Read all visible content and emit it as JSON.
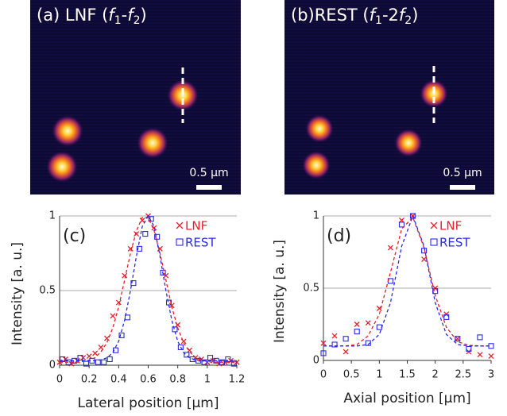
{
  "images": [
    {
      "label_parts": [
        "(a) LNF (",
        "f",
        "1",
        "-",
        "f",
        "2",
        ")"
      ],
      "scale_bar": "0.5 μm"
    },
    {
      "label_parts": [
        "(b)REST (",
        "f",
        "1",
        "-2",
        "f",
        "2",
        ")"
      ],
      "scale_bar": "0.5 μm"
    }
  ],
  "chart_data": [
    {
      "type": "scatter",
      "panel_label": "(c)",
      "xlabel": "Lateral position [μm]",
      "ylabel": "Intensity [a. u.]",
      "xlim": [
        0,
        1.2
      ],
      "ylim": [
        0,
        1
      ],
      "xticks": [
        0,
        0.2,
        0.4,
        0.6,
        0.8,
        1,
        1.2
      ],
      "yticks": [
        0,
        0.5,
        1
      ],
      "grid": true,
      "legend": "upper right",
      "series": [
        {
          "name": "LNF",
          "color": "#e8202a",
          "marker": "x",
          "x": [
            0,
            0.04,
            0.08,
            0.12,
            0.16,
            0.2,
            0.24,
            0.28,
            0.32,
            0.36,
            0.4,
            0.44,
            0.48,
            0.52,
            0.56,
            0.6,
            0.64,
            0.68,
            0.72,
            0.76,
            0.8,
            0.84,
            0.88,
            0.92,
            0.96,
            1,
            1.04,
            1.08,
            1.12,
            1.16,
            1.2
          ],
          "values": [
            0.02,
            0.04,
            0.01,
            0.03,
            0.05,
            0.06,
            0.08,
            0.12,
            0.18,
            0.33,
            0.42,
            0.6,
            0.78,
            0.88,
            0.97,
            1,
            0.92,
            0.78,
            0.6,
            0.4,
            0.27,
            0.16,
            0.1,
            0.05,
            0.04,
            0.02,
            0.03,
            0.01,
            0.02,
            0.03,
            0.02
          ]
        },
        {
          "name": "REST",
          "color": "#2a2ae8",
          "marker": "square",
          "x": [
            0.02,
            0.06,
            0.1,
            0.14,
            0.18,
            0.22,
            0.26,
            0.3,
            0.34,
            0.38,
            0.42,
            0.46,
            0.5,
            0.54,
            0.58,
            0.62,
            0.66,
            0.7,
            0.74,
            0.78,
            0.82,
            0.86,
            0.9,
            0.94,
            0.98,
            1.02,
            1.06,
            1.1,
            1.14,
            1.18
          ],
          "values": [
            0.04,
            0.02,
            0.03,
            0.05,
            0.01,
            0.03,
            0.02,
            0.02,
            0.04,
            0.1,
            0.2,
            0.32,
            0.55,
            0.78,
            0.88,
            0.98,
            0.86,
            0.62,
            0.42,
            0.24,
            0.12,
            0.07,
            0.04,
            0.03,
            0.02,
            0.05,
            0.03,
            0.02,
            0.04,
            0.01
          ]
        },
        {
          "color": "#e8202a",
          "marker": "dashed-line",
          "x": [
            0,
            0.04,
            0.08,
            0.12,
            0.16,
            0.2,
            0.24,
            0.28,
            0.32,
            0.36,
            0.4,
            0.44,
            0.48,
            0.52,
            0.56,
            0.6,
            0.64,
            0.68,
            0.72,
            0.76,
            0.8,
            0.84,
            0.88,
            0.92,
            0.96,
            1,
            1.04,
            1.08,
            1.12,
            1.16,
            1.2
          ],
          "values": [
            0.02,
            0.02,
            0.02,
            0.02,
            0.025,
            0.034,
            0.05,
            0.09,
            0.15,
            0.25,
            0.39,
            0.57,
            0.75,
            0.9,
            0.99,
            0.99,
            0.9,
            0.75,
            0.57,
            0.39,
            0.25,
            0.15,
            0.09,
            0.05,
            0.034,
            0.025,
            0.02,
            0.02,
            0.02,
            0.02,
            0.02
          ]
        },
        {
          "color": "#2a2ae8",
          "marker": "dashed-line",
          "x": [
            0,
            0.04,
            0.08,
            0.12,
            0.16,
            0.2,
            0.24,
            0.28,
            0.32,
            0.36,
            0.4,
            0.44,
            0.48,
            0.52,
            0.56,
            0.6,
            0.64,
            0.68,
            0.72,
            0.76,
            0.8,
            0.84,
            0.88,
            0.92,
            0.96,
            1,
            1.04,
            1.08,
            1.12,
            1.16,
            1.2
          ],
          "values": [
            0.03,
            0.03,
            0.03,
            0.03,
            0.03,
            0.03,
            0.03,
            0.036,
            0.049,
            0.084,
            0.16,
            0.3,
            0.5,
            0.73,
            0.93,
            1,
            0.93,
            0.73,
            0.5,
            0.3,
            0.16,
            0.084,
            0.049,
            0.036,
            0.03,
            0.03,
            0.03,
            0.03,
            0.03,
            0.03,
            0.03
          ]
        }
      ]
    },
    {
      "type": "scatter",
      "panel_label": "(d)",
      "xlabel": "Axial position [μm]",
      "ylabel": "Intensity [a. u.]",
      "xlim": [
        0,
        3
      ],
      "ylim": [
        0,
        1
      ],
      "xticks": [
        0,
        0.5,
        1,
        1.5,
        2,
        2.5,
        3
      ],
      "yticks": [
        0,
        0.5,
        1
      ],
      "grid": true,
      "legend": "upper right",
      "series": [
        {
          "name": "LNF",
          "color": "#e8202a",
          "marker": "x",
          "x": [
            0,
            0.2,
            0.4,
            0.6,
            0.8,
            1,
            1.2,
            1.4,
            1.6,
            1.8,
            2,
            2.2,
            2.4,
            2.6,
            2.8,
            3
          ],
          "values": [
            0.12,
            0.17,
            0.06,
            0.25,
            0.26,
            0.36,
            0.78,
            0.97,
            1,
            0.7,
            0.5,
            0.32,
            0.15,
            0.06,
            0.04,
            0.03
          ]
        },
        {
          "name": "REST",
          "color": "#2a2ae8",
          "marker": "square",
          "x": [
            0,
            0.2,
            0.4,
            0.6,
            0.8,
            1,
            1.2,
            1.4,
            1.6,
            1.8,
            2,
            2.2,
            2.4,
            2.6,
            2.8,
            3
          ],
          "values": [
            0.05,
            0.11,
            0.15,
            0.2,
            0.12,
            0.23,
            0.55,
            0.94,
            1,
            0.76,
            0.48,
            0.3,
            0.15,
            0.08,
            0.16,
            0.1
          ]
        },
        {
          "color": "#e8202a",
          "marker": "dashed-line",
          "x": [
            0,
            0.2,
            0.4,
            0.6,
            0.8,
            1,
            1.2,
            1.4,
            1.6,
            1.8,
            2,
            2.2,
            2.4,
            2.6,
            2.8,
            3
          ],
          "values": [
            0.1,
            0.1,
            0.1,
            0.11,
            0.17,
            0.32,
            0.61,
            0.91,
            0.99,
            0.78,
            0.45,
            0.23,
            0.13,
            0.105,
            0.1,
            0.1
          ]
        },
        {
          "color": "#2a2ae8",
          "marker": "dashed-line",
          "x": [
            0,
            0.2,
            0.4,
            0.6,
            0.8,
            1,
            1.2,
            1.4,
            1.6,
            1.8,
            2,
            2.2,
            2.4,
            2.6,
            2.8,
            3
          ],
          "values": [
            0.1,
            0.1,
            0.1,
            0.1,
            0.11,
            0.18,
            0.4,
            0.79,
            1,
            0.79,
            0.4,
            0.18,
            0.11,
            0.1,
            0.1,
            0.1
          ]
        }
      ]
    }
  ]
}
